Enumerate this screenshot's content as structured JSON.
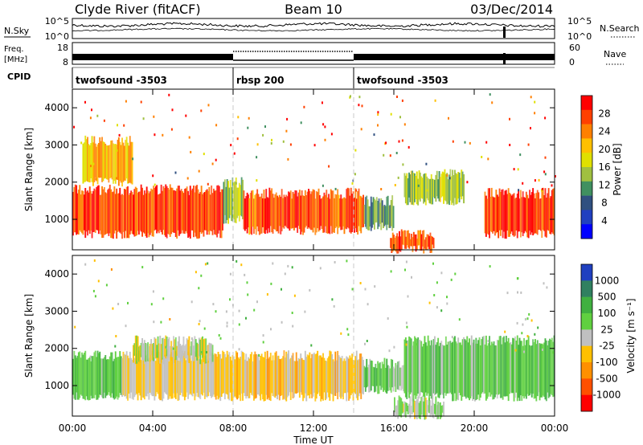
{
  "header": {
    "station": "Clyde River (fitACF)",
    "beam": "Beam 10",
    "date": "03/Dec/2014"
  },
  "noise_panel": {
    "left_label": "N.Sky",
    "right_label": "N.Search",
    "left_ticks": [
      "10^5",
      "10^0"
    ],
    "right_ticks": [
      "10^5",
      "10^0"
    ]
  },
  "freq_panel": {
    "left_label_1": "Freq.",
    "left_label_2": "[MHz]",
    "right_label": "Nave",
    "left_ticks": [
      "18",
      "8"
    ],
    "right_ticks": [
      "60",
      "0"
    ]
  },
  "cpid": {
    "label": "CPID",
    "segments": [
      {
        "name": "twofsound -3503",
        "start_h": 0,
        "end_h": 8
      },
      {
        "name": "rbsp 200",
        "start_h": 8,
        "end_h": 14
      },
      {
        "name": "twofsound -3503",
        "start_h": 14,
        "end_h": 24
      }
    ]
  },
  "x_axis": {
    "label": "Time UT",
    "ticks": [
      "00:00",
      "04:00",
      "08:00",
      "12:00",
      "16:00",
      "20:00",
      "00:00"
    ],
    "range_h": [
      0,
      24
    ]
  },
  "colorbars": {
    "power": {
      "label": "Power [dB]",
      "ticks": [
        "28",
        "24",
        "20",
        "16",
        "12",
        "8",
        "4"
      ],
      "colors": [
        "#ff0000",
        "#ff4000",
        "#ff8000",
        "#ffc000",
        "#e0e000",
        "#a0c040",
        "#409060",
        "#305080",
        "#2040c0",
        "#0000ff"
      ]
    },
    "velocity": {
      "label": "Velocity [m s⁻¹]",
      "ticks": [
        "1000",
        "500",
        "100",
        "25",
        "-25",
        "-100",
        "-500",
        "-1000"
      ],
      "colors": [
        "#2040c0",
        "#308060",
        "#40b040",
        "#60d040",
        "#c0c0c0",
        "#ffc000",
        "#ff9000",
        "#ff5000",
        "#ff0000"
      ]
    }
  },
  "chart_data": [
    {
      "type": "heatmap",
      "title": "Power",
      "xlabel": "Time UT",
      "ylabel": "Slant Range [km]",
      "xlim": [
        0,
        24
      ],
      "ylim": [
        180,
        4500
      ],
      "y_ticks": [
        1000,
        2000,
        3000,
        4000
      ],
      "colorbar_label": "Power [dB]",
      "colorbar_range": [
        0,
        30
      ],
      "regions": [
        {
          "t_start": 0.0,
          "t_end": 7.5,
          "range_low": 600,
          "range_high": 1800,
          "value_db": 27
        },
        {
          "t_start": 7.5,
          "t_end": 8.5,
          "range_low": 1000,
          "range_high": 2000,
          "value_db": 14
        },
        {
          "t_start": 8.5,
          "t_end": 14.5,
          "range_low": 700,
          "range_high": 1700,
          "value_db": 26
        },
        {
          "t_start": 14.5,
          "t_end": 16.0,
          "range_low": 800,
          "range_high": 1500,
          "value_db": 10
        },
        {
          "t_start": 15.8,
          "t_end": 18.0,
          "range_low": 200,
          "range_high": 600,
          "value_db": 26
        },
        {
          "t_start": 16.5,
          "t_end": 19.5,
          "range_low": 1500,
          "range_high": 2200,
          "value_db": 14
        },
        {
          "t_start": 20.5,
          "t_end": 24.0,
          "range_low": 600,
          "range_high": 1700,
          "value_db": 28
        },
        {
          "t_start": 0.5,
          "t_end": 3.0,
          "range_low": 2000,
          "range_high": 3100,
          "value_db": 20
        }
      ]
    },
    {
      "type": "heatmap",
      "title": "Velocity",
      "xlabel": "Time UT",
      "ylabel": "Slant Range [km]",
      "xlim": [
        0,
        24
      ],
      "ylim": [
        180,
        4500
      ],
      "y_ticks": [
        1000,
        2000,
        3000,
        4000
      ],
      "colorbar_label": "Velocity [m s-1]",
      "colorbar_range": [
        -1000,
        1000
      ],
      "regions": [
        {
          "t_start": 0.0,
          "t_end": 2.5,
          "range_low": 700,
          "range_high": 1800,
          "value_ms": 350
        },
        {
          "t_start": 2.5,
          "t_end": 8.0,
          "range_low": 700,
          "range_high": 1800,
          "value_ms": -150
        },
        {
          "t_start": 8.0,
          "t_end": 14.5,
          "range_low": 700,
          "range_high": 1800,
          "value_ms": -200
        },
        {
          "t_start": 14.5,
          "t_end": 16.5,
          "range_low": 900,
          "range_high": 1600,
          "value_ms": 200
        },
        {
          "t_start": 16.0,
          "t_end": 18.5,
          "range_low": 200,
          "range_high": 600,
          "value_ms": 100
        },
        {
          "t_start": 16.5,
          "t_end": 24.0,
          "range_low": 700,
          "range_high": 2200,
          "value_ms": 300
        },
        {
          "t_start": 3.0,
          "t_end": 7.0,
          "range_low": 1700,
          "range_high": 2200,
          "value_ms": 0
        }
      ]
    }
  ]
}
